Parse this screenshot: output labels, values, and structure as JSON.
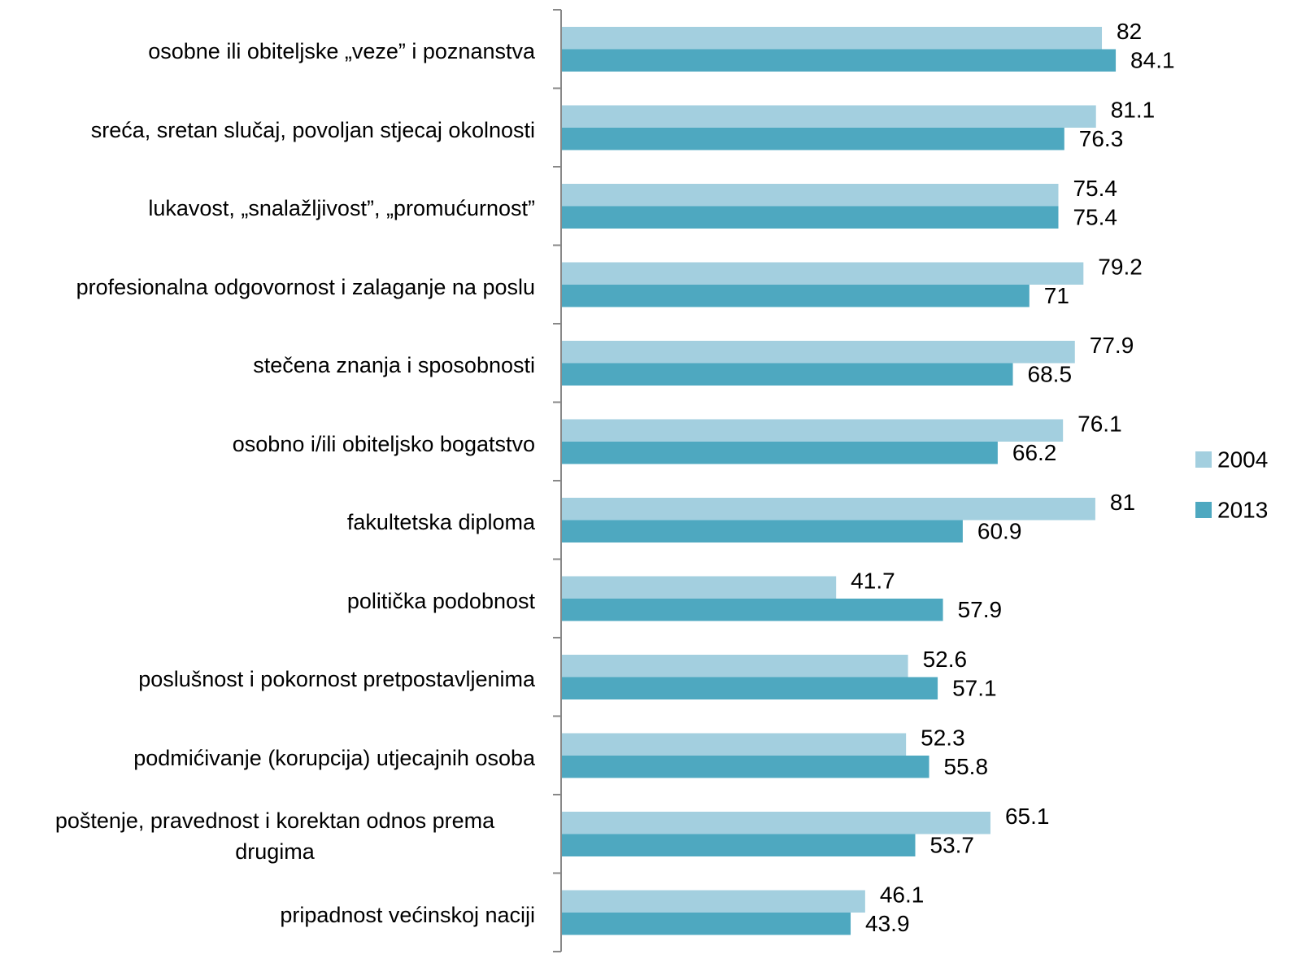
{
  "chart_data": {
    "type": "barh",
    "categories": [
      "osobne ili obiteljske „veze” i poznanstva",
      "sreća, sretan slučaj, povoljan stjecaj okolnosti",
      "lukavost, „snalažljivost”, „promućurnost”",
      "profesionalna odgovornost i zalaganje na poslu",
      "stečena znanja i sposobnosti",
      "osobno i/ili obiteljsko bogatstvo",
      "fakultetska diploma",
      "politička podobnost",
      "poslušnost i pokornost pretpostavljenima",
      "podmićivanje (korupcija) utjecajnih osoba",
      "poštenje, pravednost i korektan odnos prema drugima",
      "pripadnost većinskoj naciji"
    ],
    "series": [
      {
        "name": "2004",
        "color": "#a3cfdf",
        "values": [
          82,
          81.1,
          75.4,
          79.2,
          77.9,
          76.1,
          81,
          41.7,
          52.6,
          52.3,
          65.1,
          46.1
        ]
      },
      {
        "name": "2013",
        "color": "#4ea8c0",
        "values": [
          84.1,
          76.3,
          75.4,
          71,
          68.5,
          66.2,
          60.9,
          57.9,
          57.1,
          55.8,
          53.7,
          43.9
        ]
      }
    ],
    "xlim": [
      0,
      100
    ],
    "legend": "right"
  }
}
